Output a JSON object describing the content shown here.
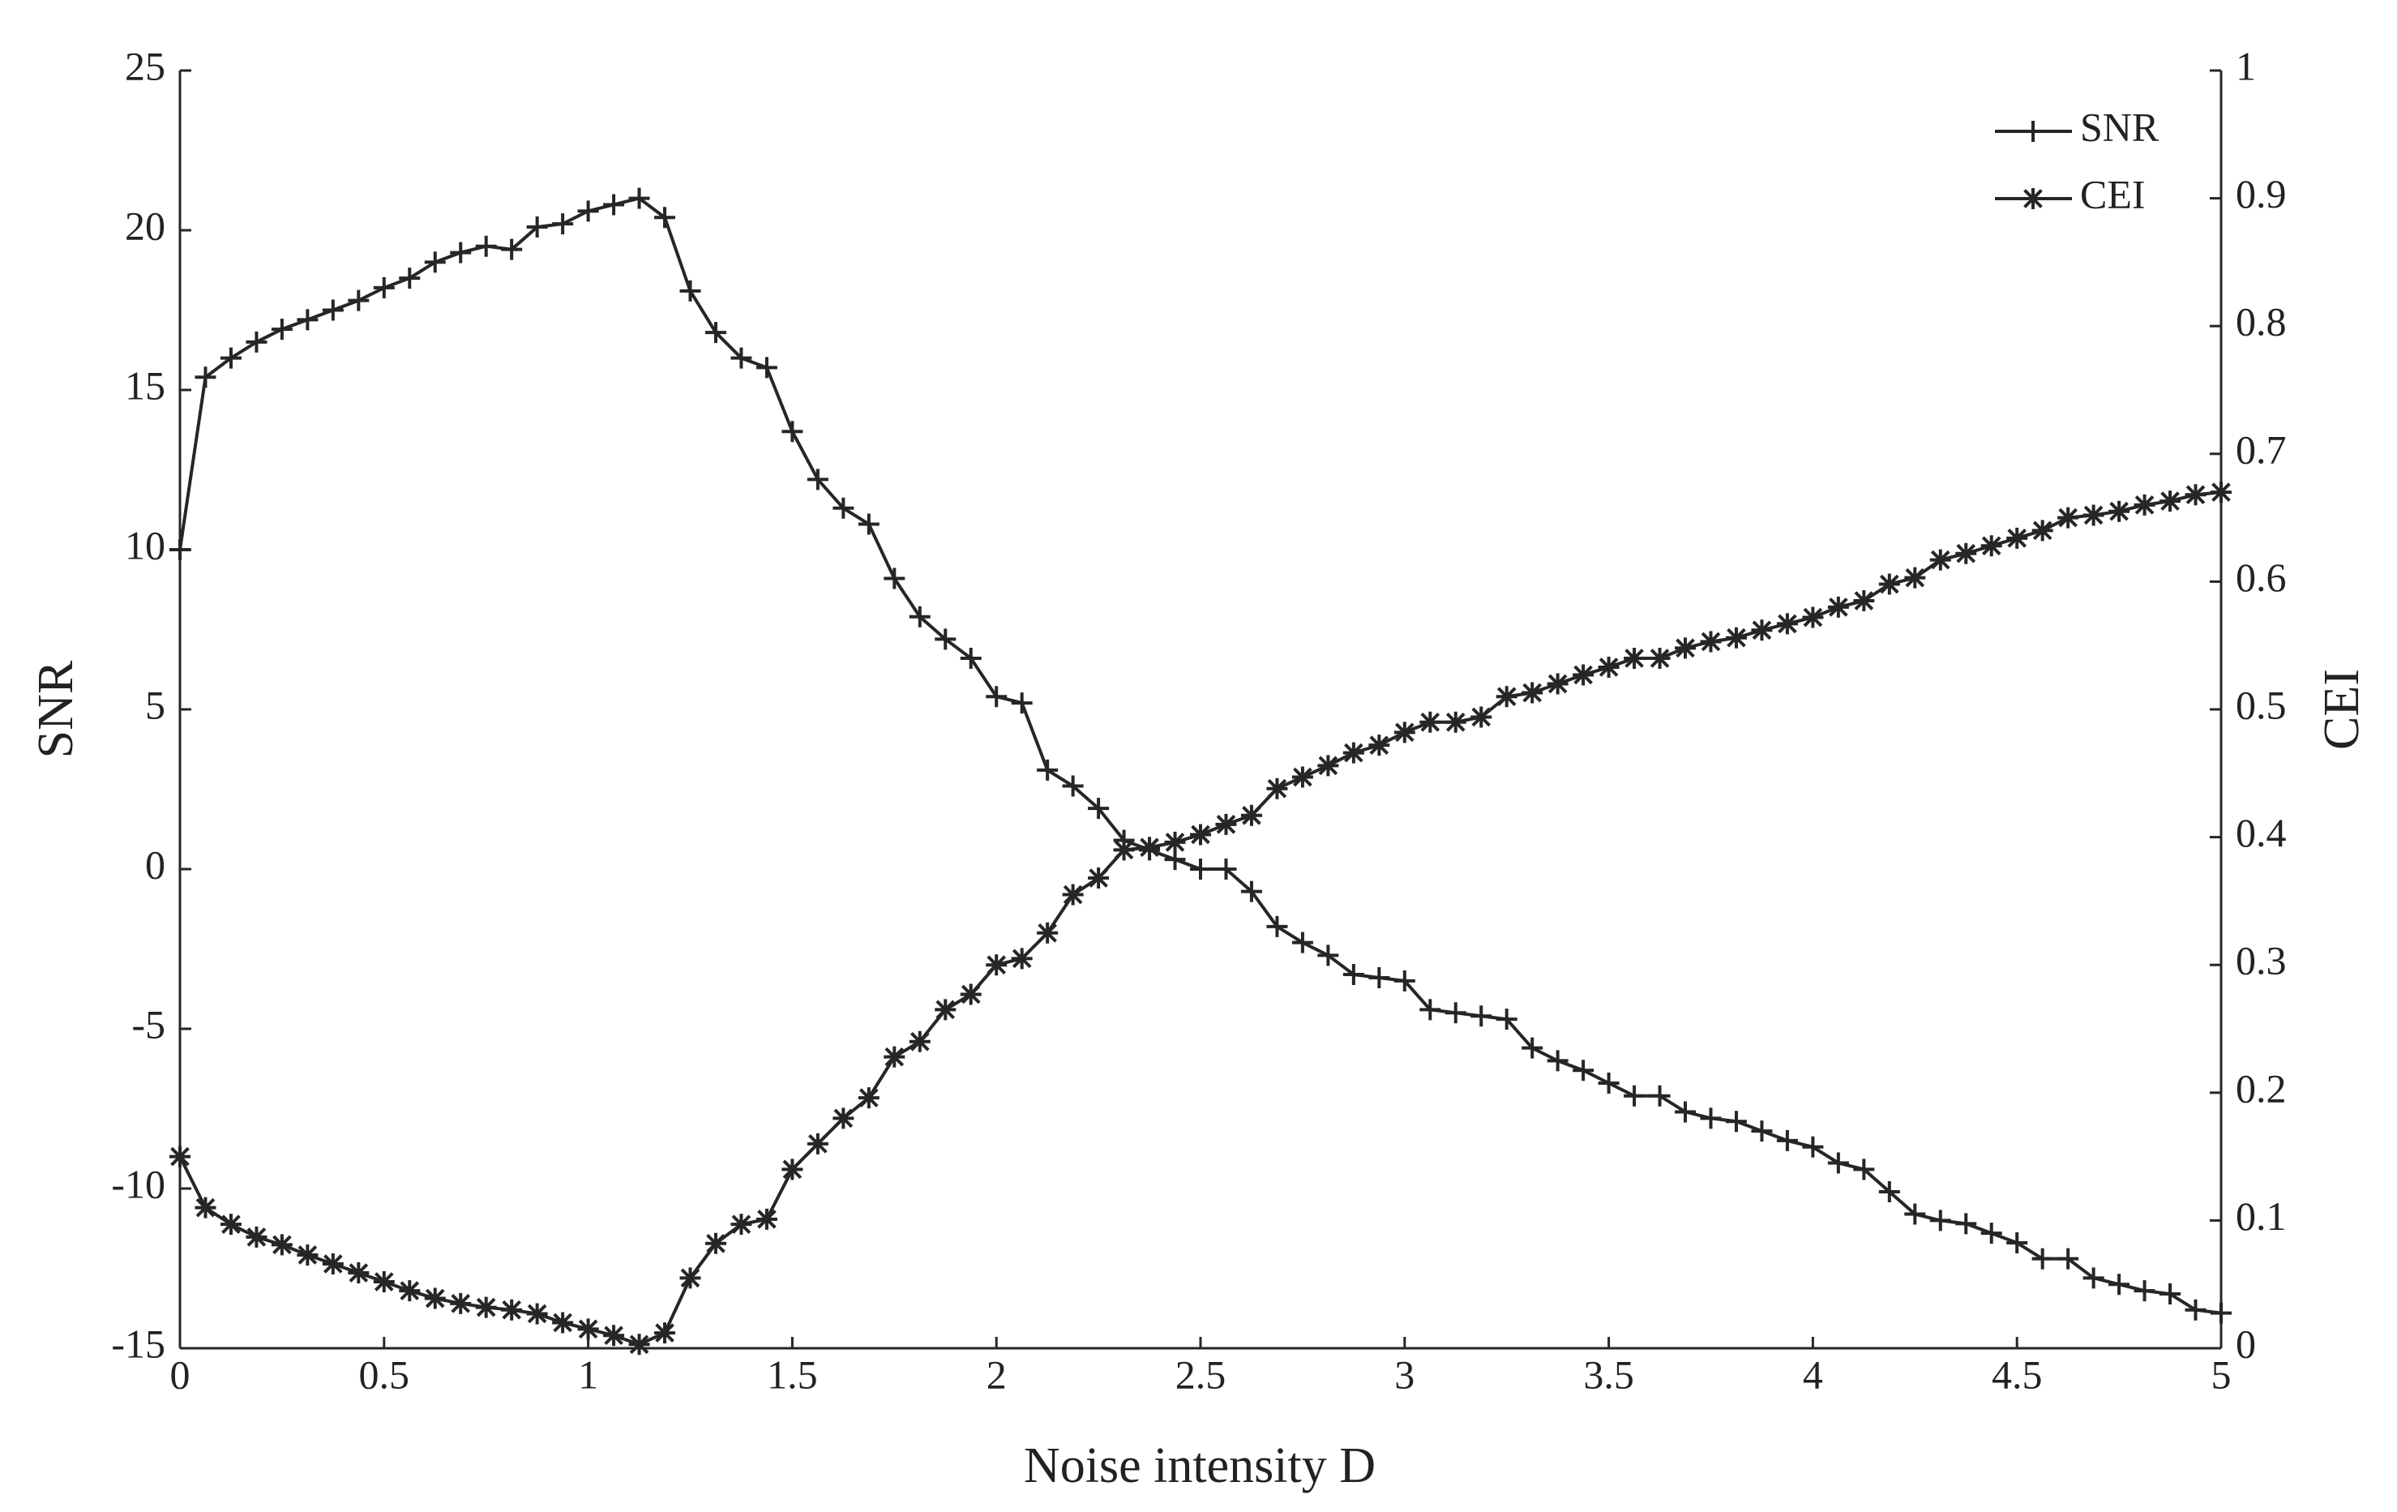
{
  "chart_data": {
    "type": "line",
    "x_label": "Noise intensity D",
    "y_label": "SNR",
    "y2_label": "CEI",
    "x": [
      0,
      0.0625,
      0.125,
      0.1875,
      0.25,
      0.3125,
      0.375,
      0.4375,
      0.5,
      0.5625,
      0.625,
      0.6875,
      0.75,
      0.8125,
      0.875,
      0.9375,
      1,
      1.0625,
      1.125,
      1.1875,
      1.25,
      1.3125,
      1.375,
      1.4375,
      1.5,
      1.5625,
      1.625,
      1.6875,
      1.75,
      1.8125,
      1.875,
      1.9375,
      2,
      2.0625,
      2.125,
      2.1875,
      2.25,
      2.3125,
      2.375,
      2.4375,
      2.5,
      2.5625,
      2.625,
      2.6875,
      2.75,
      2.8125,
      2.875,
      2.9375,
      3,
      3.0625,
      3.125,
      3.1875,
      3.25,
      3.3125,
      3.375,
      3.4375,
      3.5,
      3.5625,
      3.625,
      3.6875,
      3.75,
      3.8125,
      3.875,
      3.9375,
      4,
      4.0625,
      4.125,
      4.1875,
      4.25,
      4.3125,
      4.375,
      4.4375,
      4.5,
      4.5625,
      4.625,
      4.6875,
      4.75,
      4.8125,
      4.875,
      4.9375,
      5
    ],
    "series": [
      {
        "name": "SNR",
        "color": "#262626",
        "marker": "plus",
        "axis": "y",
        "values": [
          10,
          15.4,
          16.0,
          16.5,
          16.9,
          17.2,
          17.5,
          17.8,
          18.2,
          18.5,
          19.0,
          19.3,
          19.5,
          19.4,
          20.1,
          20.2,
          20.6,
          20.8,
          21.0,
          20.4,
          18.1,
          16.8,
          16.0,
          15.7,
          13.7,
          12.2,
          11.3,
          10.8,
          9.1,
          7.9,
          7.2,
          6.6,
          5.4,
          5.2,
          3.1,
          2.6,
          1.9,
          0.9,
          0.6,
          0.3,
          0.0,
          0.0,
          -0.7,
          -1.8,
          -2.3,
          -2.7,
          -3.3,
          -3.4,
          -3.5,
          -4.4,
          -4.5,
          -4.6,
          -4.7,
          -5.6,
          -6.0,
          -6.3,
          -6.7,
          -7.1,
          -7.1,
          -7.6,
          -7.8,
          -7.9,
          -8.2,
          -8.5,
          -8.7,
          -9.2,
          -9.4,
          -10.1,
          -10.8,
          -11.0,
          -11.1,
          -11.4,
          -11.7,
          -12.2,
          -12.2,
          -12.8,
          -13.0,
          -13.2,
          -13.3,
          -13.8,
          -13.9
        ]
      },
      {
        "name": "CEI",
        "color": "#262626",
        "marker": "star",
        "axis": "y2",
        "values": [
          0.15,
          0.11,
          0.097,
          0.087,
          0.081,
          0.073,
          0.066,
          0.059,
          0.052,
          0.045,
          0.039,
          0.035,
          0.032,
          0.03,
          0.027,
          0.02,
          0.015,
          0.01,
          0.003,
          0.012,
          0.055,
          0.082,
          0.097,
          0.101,
          0.14,
          0.16,
          0.18,
          0.196,
          0.228,
          0.24,
          0.265,
          0.277,
          0.3,
          0.305,
          0.325,
          0.355,
          0.368,
          0.39,
          0.392,
          0.396,
          0.402,
          0.41,
          0.417,
          0.438,
          0.447,
          0.456,
          0.466,
          0.472,
          0.482,
          0.49,
          0.49,
          0.494,
          0.51,
          0.513,
          0.52,
          0.527,
          0.533,
          0.54,
          0.54,
          0.548,
          0.553,
          0.556,
          0.562,
          0.567,
          0.572,
          0.58,
          0.585,
          0.598,
          0.603,
          0.617,
          0.622,
          0.628,
          0.634,
          0.64,
          0.65,
          0.652,
          0.655,
          0.66,
          0.663,
          0.668,
          0.67
        ]
      }
    ],
    "xlim": [
      0,
      5
    ],
    "xticks": [
      0,
      0.5,
      1,
      1.5,
      2,
      2.5,
      3,
      3.5,
      4,
      4.5,
      5
    ],
    "ylim": [
      -15,
      25
    ],
    "yticks": [
      -15,
      -10,
      -5,
      0,
      5,
      10,
      15,
      20,
      25
    ],
    "y2lim": [
      0,
      1
    ],
    "y2ticks": [
      0,
      0.1,
      0.2,
      0.3,
      0.4,
      0.5,
      0.6,
      0.7,
      0.8,
      0.9,
      1
    ],
    "legend": "top-right",
    "grid": false
  }
}
